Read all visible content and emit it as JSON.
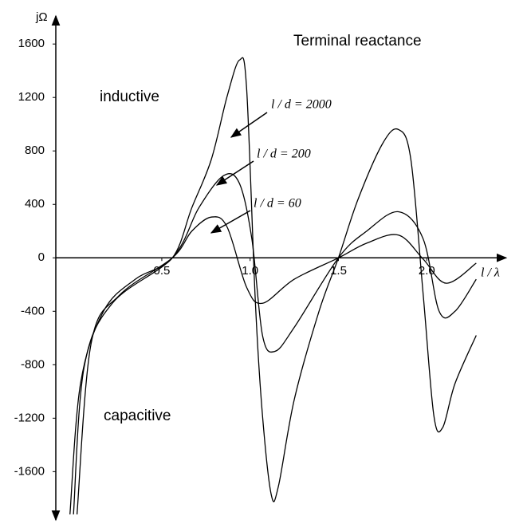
{
  "chart_data": {
    "type": "line",
    "title": "Terminal reactance",
    "ylabel": "jΩ",
    "xlabel": "l / λ",
    "annotations": [
      "inductive",
      "capacitive"
    ],
    "xlim": [
      -0.1,
      2.45
    ],
    "ylim": [
      -1950,
      1810
    ],
    "xticks": [
      0.5,
      {
        "value": 1,
        "label": "1.0"
      },
      1.5,
      {
        "value": 2,
        "label": "2.0"
      }
    ],
    "yticks": [
      1600,
      1200,
      800,
      400,
      0,
      -400,
      -800,
      -1200,
      -1600
    ],
    "series": [
      {
        "name": "l / d = 2000",
        "color": "#000000",
        "x": [
          -0.02,
          0.04,
          0.17,
          0.35,
          0.56,
          0.67,
          0.78,
          0.87,
          0.94,
          0.98,
          1.03,
          1.07,
          1.12,
          1.16,
          1.25,
          1.39,
          1.5,
          1.61,
          1.75,
          1.84,
          1.91,
          1.98,
          2.04,
          2.09,
          2.16,
          2.28
        ],
        "values": [
          -1920,
          -940,
          -400,
          -160,
          0,
          375,
          735,
          1210,
          1480,
          1270,
          -340,
          -1180,
          -1775,
          -1710,
          -1060,
          -400,
          0,
          435,
          855,
          960,
          735,
          -280,
          -1180,
          -1270,
          -940,
          -580
        ]
      },
      {
        "name": "l / d = 200",
        "color": "#000000",
        "x": [
          0.0,
          0.06,
          0.22,
          0.56,
          0.71,
          0.85,
          0.94,
          1.01,
          1.07,
          1.14,
          1.25,
          1.5,
          1.66,
          1.84,
          1.98,
          2.07,
          2.16,
          2.28
        ],
        "values": [
          -1920,
          -820,
          -340,
          0,
          375,
          615,
          555,
          140,
          -580,
          -700,
          -520,
          0,
          200,
          345,
          140,
          -400,
          -400,
          -160
        ]
      },
      {
        "name": "l / d = 60",
        "color": "#000000",
        "x": [
          0.02,
          0.1,
          0.26,
          0.56,
          0.67,
          0.78,
          0.87,
          0.98,
          1.07,
          1.25,
          1.5,
          1.66,
          1.84,
          1.98,
          2.11,
          2.28
        ],
        "values": [
          -1920,
          -640,
          -280,
          0,
          200,
          305,
          230,
          -220,
          -340,
          -160,
          0,
          110,
          170,
          -10,
          -190,
          -40
        ]
      }
    ]
  }
}
